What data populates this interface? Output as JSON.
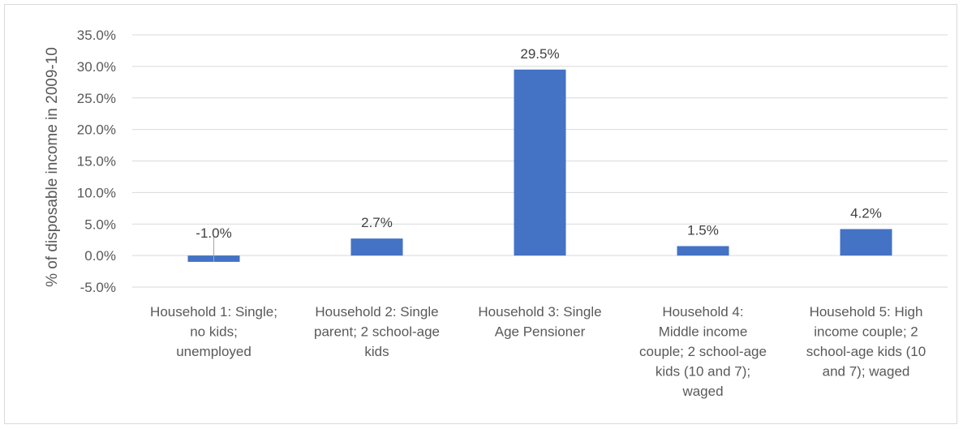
{
  "chart_data": {
    "type": "bar",
    "categories": [
      [
        "Household 1: Single;",
        "no kids;",
        "unemployed"
      ],
      [
        "Household 2: Single",
        "parent; 2 school-age",
        "kids"
      ],
      [
        "Household 3: Single",
        "Age Pensioner"
      ],
      [
        "Household 4:",
        "Middle income",
        "couple; 2 school-age",
        "kids (10 and 7);",
        "waged"
      ],
      [
        "Household 5: High",
        "income couple; 2",
        "school-age kids (10",
        "and 7); waged"
      ]
    ],
    "values": [
      -1.0,
      2.7,
      29.5,
      1.5,
      4.2
    ],
    "data_labels": [
      "-1.0%",
      "2.7%",
      "29.5%",
      "1.5%",
      "4.2%"
    ],
    "ylabel": "% of disposable income in 2009-10",
    "xlabel": "",
    "ylim": [
      -5.0,
      35.0
    ],
    "yticks": [
      35.0,
      30.0,
      25.0,
      20.0,
      15.0,
      10.0,
      5.0,
      0.0,
      -5.0
    ],
    "ytick_labels": [
      "35.0%",
      "30.0%",
      "25.0%",
      "20.0%",
      "15.0%",
      "10.0%",
      "5.0%",
      "0.0%",
      "-5.0%"
    ],
    "grid": true,
    "bar_color": "#4472c4",
    "grid_color": "#d9d9d9"
  }
}
